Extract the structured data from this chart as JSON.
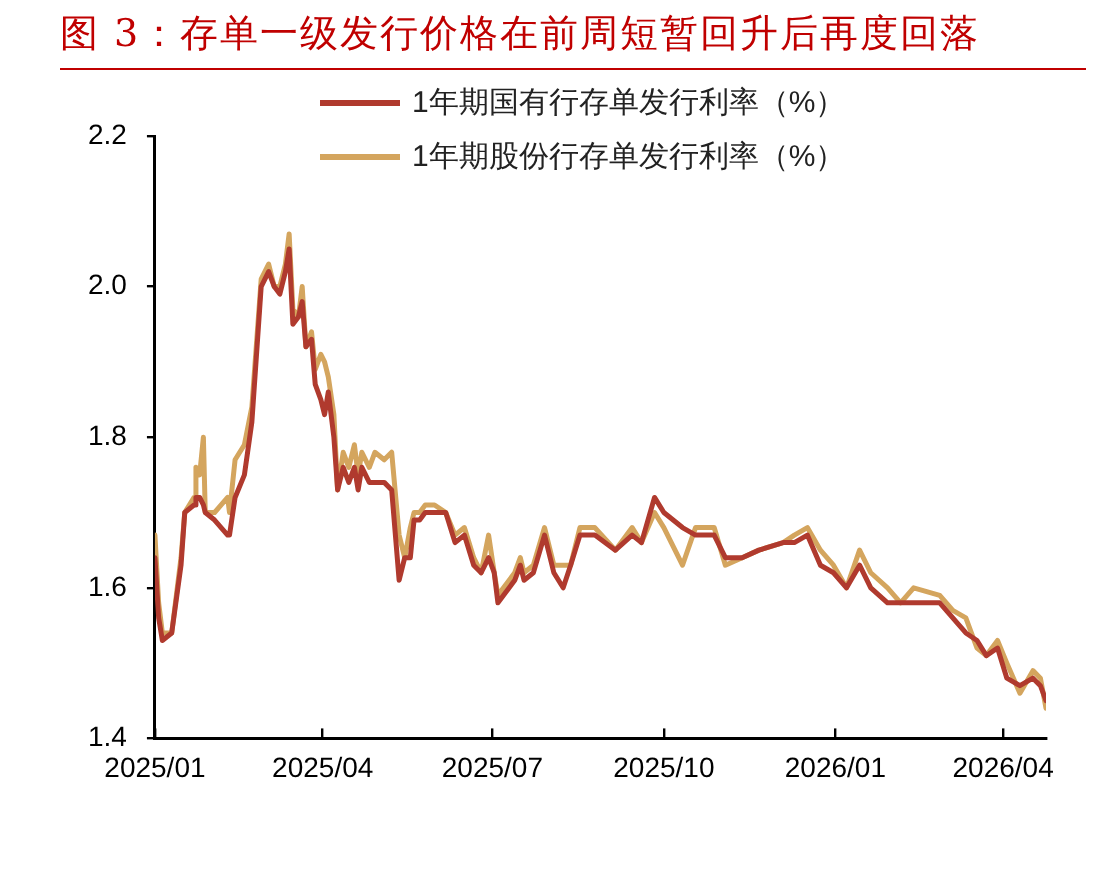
{
  "chart_data": {
    "type": "line",
    "title": "图 3：存单一级发行价格在前周短暂回升后再度回落",
    "x": [
      "2025-01-01",
      "2025-01-03",
      "2025-01-05",
      "2025-01-10",
      "2025-01-15",
      "2025-01-17",
      "2025-01-22",
      "2025-01-23",
      "2025-01-25",
      "2025-01-27",
      "2025-01-28",
      "2025-02-02",
      "2025-02-09",
      "2025-02-10",
      "2025-02-13",
      "2025-02-18",
      "2025-02-22",
      "2025-02-27",
      "2025-03-03",
      "2025-03-06",
      "2025-03-09",
      "2025-03-12",
      "2025-03-14",
      "2025-03-16",
      "2025-03-19",
      "2025-03-21",
      "2025-03-23",
      "2025-03-26",
      "2025-03-28",
      "2025-03-31",
      "2025-04-02",
      "2025-04-04",
      "2025-04-07",
      "2025-04-09",
      "2025-04-12",
      "2025-04-15",
      "2025-04-18",
      "2025-04-20",
      "2025-04-22",
      "2025-04-26",
      "2025-04-29",
      "2025-05-04",
      "2025-05-08",
      "2025-05-12",
      "2025-05-15",
      "2025-05-18",
      "2025-05-20",
      "2025-05-23",
      "2025-05-26",
      "2025-05-31",
      "2025-06-06",
      "2025-06-11",
      "2025-06-16",
      "2025-06-21",
      "2025-06-25",
      "2025-06-29",
      "2025-07-02",
      "2025-07-04",
      "2025-07-07",
      "2025-07-13",
      "2025-07-16",
      "2025-07-18",
      "2025-07-23",
      "2025-07-29",
      "2025-08-03",
      "2025-08-08",
      "2025-08-12",
      "2025-08-17",
      "2025-08-25",
      "2025-09-05",
      "2025-09-14",
      "2025-09-19",
      "2025-09-26",
      "2025-10-01",
      "2025-10-11",
      "2025-10-18",
      "2025-10-28",
      "2025-11-03",
      "2025-11-12",
      "2025-11-21",
      "2025-12-04",
      "2025-12-10",
      "2025-12-17",
      "2025-12-24",
      "2025-12-31",
      "2026-01-07",
      "2026-01-14",
      "2026-01-20",
      "2026-01-29",
      "2026-02-05",
      "2026-02-12",
      "2026-02-26",
      "2026-03-05",
      "2026-03-12",
      "2026-03-18",
      "2026-03-23",
      "2026-03-29",
      "2026-04-03",
      "2026-04-10",
      "2026-04-17",
      "2026-04-21",
      "2026-04-24"
    ],
    "series": [
      {
        "name": "1年期国有行存单发行利率（%）",
        "color": "#b03a2e",
        "values": [
          1.64,
          1.56,
          1.53,
          1.54,
          1.63,
          1.7,
          1.71,
          1.72,
          1.72,
          1.71,
          1.7,
          1.69,
          1.67,
          1.67,
          1.72,
          1.75,
          1.82,
          2.0,
          2.02,
          2.0,
          1.99,
          2.02,
          2.05,
          1.95,
          1.96,
          1.98,
          1.92,
          1.93,
          1.87,
          1.85,
          1.83,
          1.86,
          1.8,
          1.73,
          1.76,
          1.74,
          1.76,
          1.73,
          1.76,
          1.74,
          1.74,
          1.74,
          1.73,
          1.61,
          1.64,
          1.64,
          1.69,
          1.69,
          1.7,
          1.7,
          1.7,
          1.66,
          1.67,
          1.63,
          1.62,
          1.64,
          1.62,
          1.58,
          1.59,
          1.61,
          1.63,
          1.61,
          1.62,
          1.67,
          1.62,
          1.6,
          1.63,
          1.67,
          1.67,
          1.65,
          1.67,
          1.66,
          1.72,
          1.7,
          1.68,
          1.67,
          1.67,
          1.64,
          1.64,
          1.65,
          1.66,
          1.66,
          1.67,
          1.63,
          1.62,
          1.6,
          1.63,
          1.6,
          1.58,
          1.58,
          1.58,
          1.58,
          1.56,
          1.54,
          1.53,
          1.51,
          1.52,
          1.48,
          1.47,
          1.48,
          1.47,
          1.45
        ]
      },
      {
        "name": "1年期股份行存单发行利率（%）",
        "color": "#d4a55e",
        "values": [
          1.67,
          1.58,
          1.54,
          1.54,
          1.64,
          1.7,
          1.72,
          1.76,
          1.75,
          1.8,
          1.7,
          1.7,
          1.72,
          1.7,
          1.77,
          1.79,
          1.84,
          2.01,
          2.03,
          2.0,
          2.0,
          2.03,
          2.07,
          1.97,
          1.96,
          2.0,
          1.92,
          1.94,
          1.89,
          1.91,
          1.9,
          1.88,
          1.83,
          1.73,
          1.78,
          1.76,
          1.79,
          1.75,
          1.78,
          1.76,
          1.78,
          1.77,
          1.78,
          1.67,
          1.64,
          1.68,
          1.7,
          1.7,
          1.71,
          1.71,
          1.7,
          1.67,
          1.68,
          1.64,
          1.62,
          1.67,
          1.62,
          1.59,
          1.6,
          1.62,
          1.64,
          1.62,
          1.63,
          1.68,
          1.63,
          1.63,
          1.63,
          1.68,
          1.68,
          1.65,
          1.68,
          1.66,
          1.7,
          1.68,
          1.63,
          1.68,
          1.68,
          1.63,
          1.64,
          1.65,
          1.66,
          1.67,
          1.68,
          1.65,
          1.63,
          1.6,
          1.65,
          1.62,
          1.6,
          1.58,
          1.6,
          1.59,
          1.57,
          1.56,
          1.52,
          1.51,
          1.53,
          1.5,
          1.46,
          1.49,
          1.48,
          1.44
        ]
      }
    ],
    "xlim": [
      "2025-01-01",
      "2026-04-24"
    ],
    "xticks": [
      {
        "value": "2025-01",
        "label": "2025/01"
      },
      {
        "value": "2025-04",
        "label": "2025/04"
      },
      {
        "value": "2025-07",
        "label": "2025/07"
      },
      {
        "value": "2025-10",
        "label": "2025/10"
      },
      {
        "value": "2026-01",
        "label": "2026/01"
      },
      {
        "value": "2026-04",
        "label": "2026/04"
      }
    ],
    "ylim": [
      1.4,
      2.2
    ],
    "yticks": [
      {
        "value": 1.4,
        "label": "1.4"
      },
      {
        "value": 1.6,
        "label": "1.6"
      },
      {
        "value": 1.8,
        "label": "1.8"
      },
      {
        "value": 2.0,
        "label": "2.0"
      },
      {
        "value": 2.2,
        "label": "2.2"
      }
    ],
    "grid": false,
    "legend": "top",
    "marker": "none",
    "line_style": "solid"
  }
}
